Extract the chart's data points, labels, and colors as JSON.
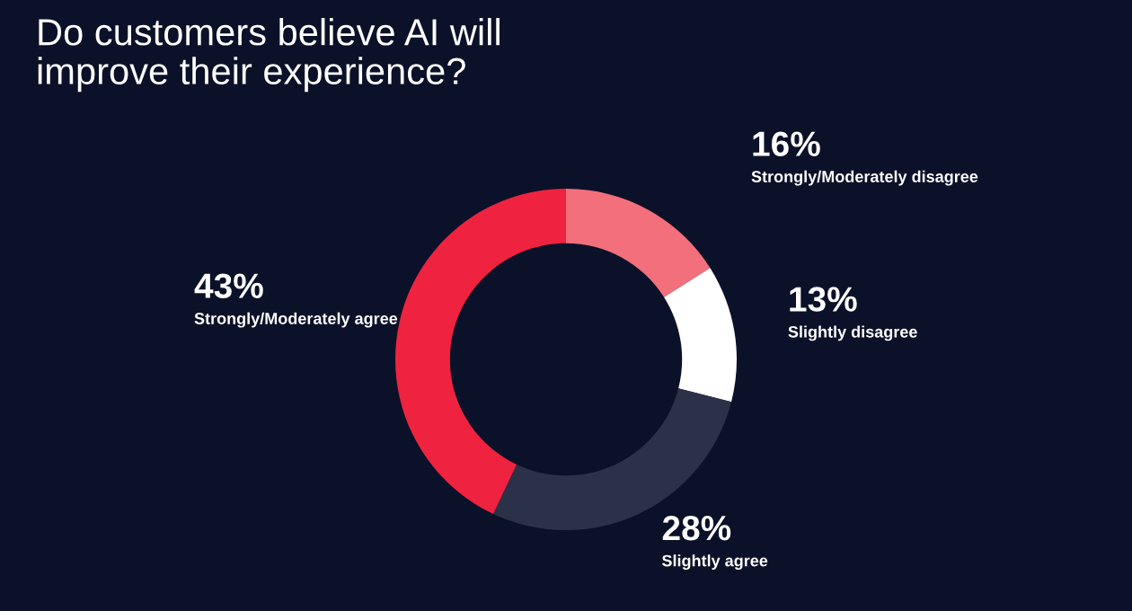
{
  "chart_data": {
    "type": "donut",
    "title": "Do customers believe AI will\nimprove their experience?",
    "categories": [
      "Strongly/Moderately disagree",
      "Slightly disagree",
      "Slightly agree",
      "Strongly/Moderately agree"
    ],
    "values": [
      16,
      13,
      28,
      43
    ],
    "colors": [
      "#f36f7c",
      "#ffffff",
      "#2b3148",
      "#ef233f"
    ],
    "value_labels": [
      "16%",
      "13%",
      "28%",
      "43%"
    ],
    "legend": false
  }
}
